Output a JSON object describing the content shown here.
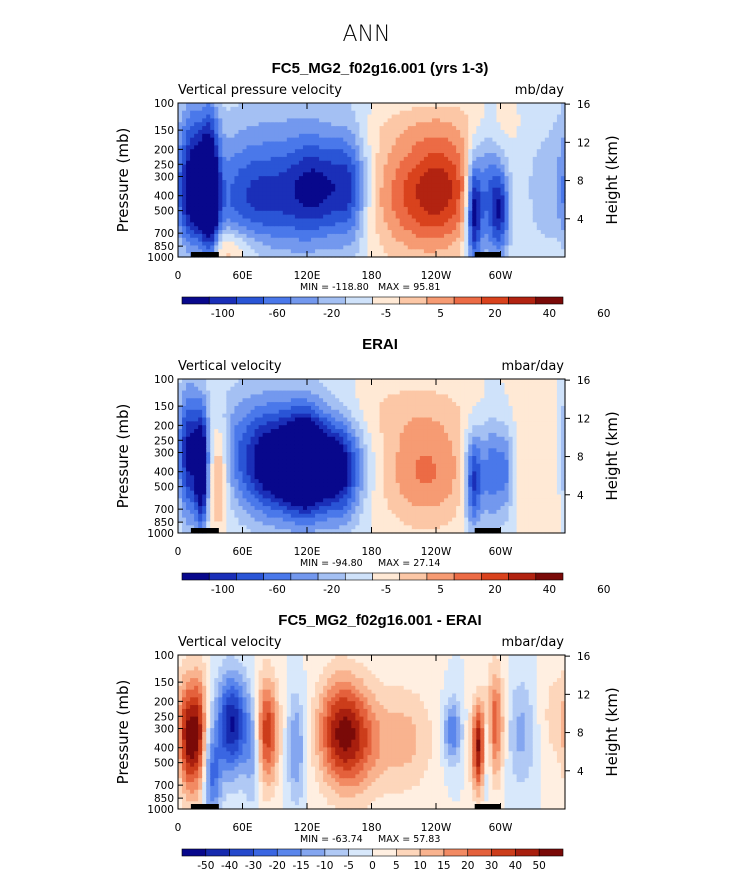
{
  "page_title": "ANN",
  "colorbar_colors": [
    "#08088c",
    "#1a2fb8",
    "#2a55d6",
    "#4a78ea",
    "#7398ee",
    "#a4c0f3",
    "#cfe2fa",
    "#ffe9d5",
    "#fcc7a6",
    "#f69b73",
    "#ec6b45",
    "#d9421d",
    "#b22311",
    "#7a0a08"
  ],
  "colorbar_colors_diff": [
    "#08088c",
    "#162aae",
    "#2549cc",
    "#3a66e2",
    "#5a86ec",
    "#84a6f0",
    "#b0c9f5",
    "#d8e8fb",
    "#ffefe1",
    "#fdd6bb",
    "#f9b38f",
    "#f28a63",
    "#e4613c",
    "#cc3d1b",
    "#a81f0e",
    "#7a0a08"
  ],
  "chart_data": [
    {
      "type": "heatmap",
      "title": "FC5_MG2_f02g16.001 (yrs 1-3)",
      "subtitle_left": "Vertical pressure velocity",
      "units": "mb/day",
      "ylabel": "Pressure (mb)",
      "ylabel_right": "Height (km)",
      "y_ticks": [
        "100",
        "150",
        "200",
        "250",
        "300",
        "400",
        "500",
        "700",
        "850",
        "1000"
      ],
      "y_ticks_right": [
        "16",
        "12",
        "8",
        "4"
      ],
      "x_ticks": [
        "0",
        "60E",
        "120E",
        "180",
        "120W",
        "60W"
      ],
      "min_label": "MIN = -118.80",
      "max_label": "MAX =  95.81",
      "min": -118.8,
      "max": 95.81,
      "colorbar_labels": [
        "-100",
        "-60",
        "-20",
        "-5",
        "5",
        "20",
        "40",
        "60"
      ]
    },
    {
      "type": "heatmap",
      "title": "ERAI",
      "subtitle_left": "Vertical velocity",
      "units": "mbar/day",
      "ylabel": "Pressure (mb)",
      "ylabel_right": "Height (km)",
      "y_ticks": [
        "100",
        "150",
        "200",
        "250",
        "300",
        "400",
        "500",
        "700",
        "850",
        "1000"
      ],
      "y_ticks_right": [
        "16",
        "12",
        "8",
        "4"
      ],
      "x_ticks": [
        "0",
        "60E",
        "120E",
        "180",
        "120W",
        "60W"
      ],
      "min_label": "MIN = -94.80",
      "max_label": "MAX =  27.14",
      "min": -94.8,
      "max": 27.14,
      "colorbar_labels": [
        "-100",
        "-60",
        "-20",
        "-5",
        "5",
        "20",
        "40",
        "60"
      ]
    },
    {
      "type": "heatmap",
      "title": "FC5_MG2_f02g16.001 - ERAI",
      "subtitle_left": "Vertical velocity",
      "units": "mbar/day",
      "ylabel": "Pressure (mb)",
      "ylabel_right": "Height (km)",
      "y_ticks": [
        "100",
        "150",
        "200",
        "250",
        "300",
        "400",
        "500",
        "700",
        "850",
        "1000"
      ],
      "y_ticks_right": [
        "16",
        "12",
        "8",
        "4"
      ],
      "x_ticks": [
        "0",
        "60E",
        "120E",
        "180",
        "120W",
        "60W"
      ],
      "min_label": "MIN = -63.74",
      "max_label": "MAX =  57.83",
      "min": -63.74,
      "max": 57.83,
      "colorbar_labels": [
        "-50",
        "-40",
        "-30",
        "-20",
        "-15",
        "-10",
        "-5",
        "0",
        "5",
        "10",
        "15",
        "20",
        "30",
        "40",
        "50"
      ]
    }
  ]
}
